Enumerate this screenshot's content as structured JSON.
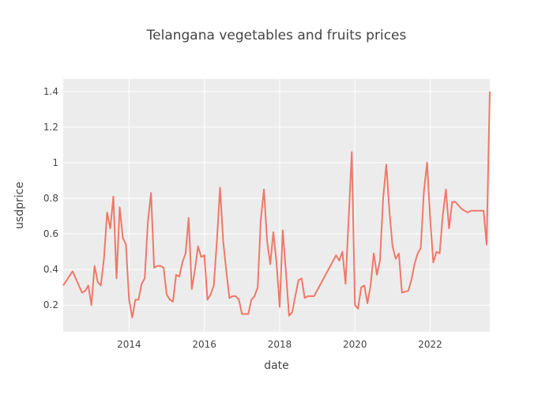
{
  "chart_data": {
    "type": "line",
    "title": "Telangana vegetables and fruits prices",
    "xlabel": "date",
    "ylabel": "usdprice",
    "x_ticks": [
      "2014",
      "2016",
      "2018",
      "2020",
      "2022"
    ],
    "y_ticks": [
      "0.2",
      "0.4",
      "0.6",
      "0.8",
      "1",
      "1.2",
      "1.4"
    ],
    "grid": true,
    "series": [
      {
        "color": "#f07868",
        "x": [
          "2012-04",
          "2012-07",
          "2012-10",
          "2012-11",
          "2012-12",
          "2013-01",
          "2013-02",
          "2013-03",
          "2013-04",
          "2013-05",
          "2013-06",
          "2013-07",
          "2013-08",
          "2013-09",
          "2013-10",
          "2013-11",
          "2013-12",
          "2014-01",
          "2014-02",
          "2014-03",
          "2014-04",
          "2014-05",
          "2014-06",
          "2014-07",
          "2014-08",
          "2014-09",
          "2014-10",
          "2014-11",
          "2014-12",
          "2015-01",
          "2015-02",
          "2015-03",
          "2015-04",
          "2015-05",
          "2015-06",
          "2015-07",
          "2015-08",
          "2015-09",
          "2015-10",
          "2015-11",
          "2015-12",
          "2016-01",
          "2016-02",
          "2016-03",
          "2016-04",
          "2016-05",
          "2016-06",
          "2016-07",
          "2016-08",
          "2016-09",
          "2016-10",
          "2016-11",
          "2016-12",
          "2017-01",
          "2017-02",
          "2017-03",
          "2017-04",
          "2017-05",
          "2017-06",
          "2017-07",
          "2017-08",
          "2017-09",
          "2017-10",
          "2017-11",
          "2017-12",
          "2018-01",
          "2018-02",
          "2018-03",
          "2018-04",
          "2018-05",
          "2018-06",
          "2018-07",
          "2018-08",
          "2018-09",
          "2018-10",
          "2018-12",
          "2019-07",
          "2019-08",
          "2019-09",
          "2019-10",
          "2019-11",
          "2019-12",
          "2020-01",
          "2020-02",
          "2020-03",
          "2020-04",
          "2020-05",
          "2020-06",
          "2020-07",
          "2020-08",
          "2020-09",
          "2020-10",
          "2020-11",
          "2020-12",
          "2021-01",
          "2021-02",
          "2021-03",
          "2021-04",
          "2021-06",
          "2021-07",
          "2021-08",
          "2021-09",
          "2021-10",
          "2021-11",
          "2021-12",
          "2022-01",
          "2022-02",
          "2022-03",
          "2022-04",
          "2022-05",
          "2022-06",
          "2022-07",
          "2022-08",
          "2022-09",
          "2022-10",
          "2022-11",
          "2022-12",
          "2023-01",
          "2023-02",
          "2023-03",
          "2023-04",
          "2023-05",
          "2023-06",
          "2023-07",
          "2023-08"
        ],
        "y": [
          0.31,
          0.39,
          0.27,
          0.28,
          0.31,
          0.2,
          0.42,
          0.33,
          0.31,
          0.46,
          0.72,
          0.63,
          0.81,
          0.35,
          0.75,
          0.58,
          0.54,
          0.23,
          0.13,
          0.23,
          0.23,
          0.32,
          0.35,
          0.67,
          0.83,
          0.41,
          0.42,
          0.42,
          0.41,
          0.26,
          0.23,
          0.22,
          0.37,
          0.36,
          0.44,
          0.49,
          0.69,
          0.29,
          0.4,
          0.53,
          0.47,
          0.48,
          0.23,
          0.26,
          0.31,
          0.56,
          0.86,
          0.56,
          0.39,
          0.24,
          0.25,
          0.25,
          0.23,
          0.15,
          0.15,
          0.15,
          0.23,
          0.25,
          0.3,
          0.68,
          0.85,
          0.56,
          0.43,
          0.61,
          0.44,
          0.19,
          0.62,
          0.39,
          0.14,
          0.16,
          0.25,
          0.34,
          0.35,
          0.24,
          0.25,
          0.25,
          0.48,
          0.45,
          0.5,
          0.32,
          0.68,
          1.06,
          0.2,
          0.18,
          0.3,
          0.31,
          0.21,
          0.31,
          0.49,
          0.37,
          0.45,
          0.8,
          0.99,
          0.73,
          0.53,
          0.46,
          0.49,
          0.27,
          0.28,
          0.34,
          0.43,
          0.49,
          0.52,
          0.84,
          1.0,
          0.68,
          0.44,
          0.5,
          0.49,
          0.7,
          0.85,
          0.63,
          0.78,
          0.78,
          0.76,
          0.74,
          0.73,
          0.72,
          0.73,
          0.73,
          0.73,
          0.73,
          0.73,
          0.54,
          1.4
        ]
      }
    ],
    "x_range": [
      "2012-04",
      "2023-08"
    ],
    "y_range": [
      0.05,
      1.47
    ]
  }
}
